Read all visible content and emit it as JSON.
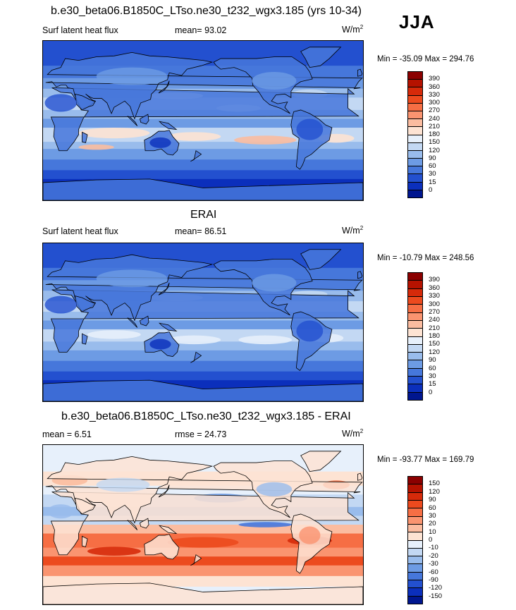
{
  "header": {
    "title": "b.e30_beta06.B1850C_LTso.ne30_t232_wgx3.185 (yrs 10-34)",
    "season": "JJA"
  },
  "panels": [
    {
      "id": "model",
      "title": "",
      "left_label": "Surf latent heat flux",
      "stat_label": "mean=",
      "stat_value": "93.02",
      "stat2_label": "",
      "stat2_value": "",
      "units": "W/m",
      "units_sup": "2",
      "minmax": "Min = -35.09 Max = 294.76",
      "style": "model"
    },
    {
      "id": "obs",
      "title": "ERAI",
      "left_label": "Surf latent heat flux",
      "stat_label": "mean=",
      "stat_value": "86.51",
      "stat2_label": "",
      "stat2_value": "",
      "units": "W/m",
      "units_sup": "2",
      "minmax": "Min = -10.79 Max = 248.56",
      "style": "obs"
    },
    {
      "id": "diff",
      "title": "b.e30_beta06.B1850C_LTso.ne30_t232_wgx3.185 - ERAI",
      "left_label": "",
      "stat_label": "mean =",
      "stat_value": "6.51",
      "stat2_label": "rmse =",
      "stat2_value": "24.73",
      "units": "W/m",
      "units_sup": "2",
      "minmax": "Min = -93.77 Max = 169.79",
      "style": "diff"
    }
  ],
  "colorbars": {
    "abs": {
      "levels": [
        "390",
        "360",
        "330",
        "300",
        "270",
        "240",
        "210",
        "180",
        "150",
        "120",
        "90",
        "60",
        "30",
        "15",
        "0"
      ],
      "colors": [
        "#8b0000",
        "#b51200",
        "#d62a0a",
        "#ec4a1e",
        "#f66e44",
        "#fa9470",
        "#fbbca0",
        "#fde3d3",
        "#e7f0fb",
        "#c3d8f3",
        "#99bcec",
        "#6d9be4",
        "#4677db",
        "#2350cf",
        "#0b2fbc",
        "#00168f"
      ]
    },
    "diff": {
      "levels": [
        "150",
        "120",
        "90",
        "60",
        "30",
        "20",
        "10",
        "0",
        "-10",
        "-20",
        "-30",
        "-60",
        "-90",
        "-120",
        "-150"
      ],
      "colors": [
        "#8b0000",
        "#b51200",
        "#d62a0a",
        "#ec4a1e",
        "#f66e44",
        "#fa9470",
        "#fbbca0",
        "#fde3d3",
        "#e7f0fb",
        "#c3d8f3",
        "#99bcec",
        "#6d9be4",
        "#4677db",
        "#2350cf",
        "#0b2fbc",
        "#00168f"
      ]
    }
  }
}
